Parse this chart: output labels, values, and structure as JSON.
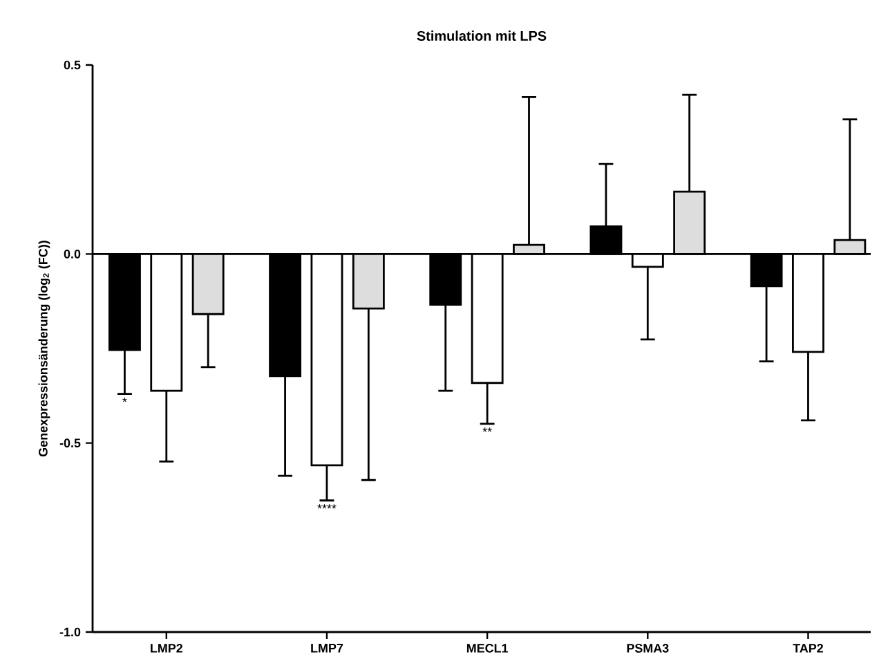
{
  "chart_data": {
    "type": "bar",
    "title": "Stimulation mit LPS",
    "ylabel": "Genexpressionsänderung (log$_{2}$ (FC))",
    "categories": [
      "LMP2",
      "LMP7",
      "MECL1",
      "PSMA3",
      "TAP2"
    ],
    "series": [
      {
        "color": "#000000",
        "values": [
          -0.254,
          -0.323,
          -0.134,
          0.073,
          -0.085
        ],
        "errors": [
          [
            -0.37,
            -0.254
          ],
          [
            -0.587,
            -0.323
          ],
          [
            -0.362,
            -0.134
          ],
          [
            0.073,
            0.238
          ],
          [
            -0.284,
            -0.085
          ]
        ]
      },
      {
        "color": "#ffffff",
        "values": [
          -0.362,
          -0.559,
          -0.341,
          -0.034,
          -0.259
        ],
        "errors": [
          [
            -0.549,
            -0.362
          ],
          [
            -0.652,
            -0.559
          ],
          [
            -0.449,
            -0.341
          ],
          [
            -0.226,
            -0.034
          ],
          [
            -0.44,
            -0.259
          ]
        ]
      },
      {
        "color": "#dddddd",
        "values": [
          -0.159,
          -0.144,
          0.024,
          0.165,
          0.037
        ],
        "errors": [
          [
            -0.299,
            -0.159
          ],
          [
            -0.598,
            -0.144
          ],
          [
            0.024,
            0.415
          ],
          [
            0.165,
            0.421
          ],
          [
            0.037,
            0.356
          ]
        ]
      }
    ],
    "ylim": [
      -1.0,
      0.5
    ],
    "yticks": [
      {
        "value": -1.0,
        "label": "-1.0"
      },
      {
        "value": -0.5,
        "label": "-0.5"
      },
      {
        "value": 0.0,
        "label": "0.0"
      },
      {
        "value": 0.5,
        "label": "0.5"
      }
    ],
    "ref_lines": [
      {
        "axis": "y",
        "value": 0.0,
        "color": "#000000"
      }
    ],
    "annotations": [
      "*",
      {
        "text": "****",
        "x": "LMP7",
        "y": -0.652
      },
      {
        "text": "**",
        "x": "MECL1",
        "y": -0.449
      }
    ]
  }
}
